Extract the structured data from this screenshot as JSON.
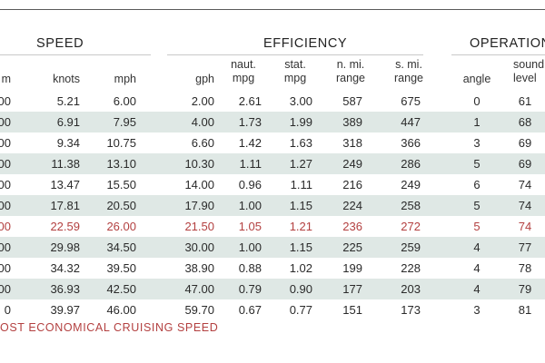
{
  "groups": {
    "speed": "SPEED",
    "efficiency": "EFFICIENCY",
    "operation": "OPERATION"
  },
  "headers": {
    "rpm": "m",
    "knots": "knots",
    "mph": "mph",
    "gph": "gph",
    "naut_mpg": "naut. mpg",
    "stat_mpg": "stat. mpg",
    "n_range": "n. mi. range",
    "s_range": "s. mi. range",
    "angle": "angle",
    "sound": "sound level"
  },
  "rows": [
    {
      "rpm": "00",
      "knots": "5.21",
      "mph": "6.00",
      "gph": "2.00",
      "naut": "2.61",
      "stat": "3.00",
      "nrange": "587",
      "srange": "675",
      "angle": "0",
      "sound": "61"
    },
    {
      "rpm": "00",
      "knots": "6.91",
      "mph": "7.95",
      "gph": "4.00",
      "naut": "1.73",
      "stat": "1.99",
      "nrange": "389",
      "srange": "447",
      "angle": "1",
      "sound": "68"
    },
    {
      "rpm": "00",
      "knots": "9.34",
      "mph": "10.75",
      "gph": "6.60",
      "naut": "1.42",
      "stat": "1.63",
      "nrange": "318",
      "srange": "366",
      "angle": "3",
      "sound": "69"
    },
    {
      "rpm": "00",
      "knots": "11.38",
      "mph": "13.10",
      "gph": "10.30",
      "naut": "1.11",
      "stat": "1.27",
      "nrange": "249",
      "srange": "286",
      "angle": "5",
      "sound": "69"
    },
    {
      "rpm": "00",
      "knots": "13.47",
      "mph": "15.50",
      "gph": "14.00",
      "naut": "0.96",
      "stat": "1.11",
      "nrange": "216",
      "srange": "249",
      "angle": "6",
      "sound": "74"
    },
    {
      "rpm": "00",
      "knots": "17.81",
      "mph": "20.50",
      "gph": "17.90",
      "naut": "1.00",
      "stat": "1.15",
      "nrange": "224",
      "srange": "258",
      "angle": "5",
      "sound": "74"
    },
    {
      "rpm": "00",
      "knots": "22.59",
      "mph": "26.00",
      "gph": "21.50",
      "naut": "1.05",
      "stat": "1.21",
      "nrange": "236",
      "srange": "272",
      "angle": "5",
      "sound": "74"
    },
    {
      "rpm": "00",
      "knots": "29.98",
      "mph": "34.50",
      "gph": "30.00",
      "naut": "1.00",
      "stat": "1.15",
      "nrange": "225",
      "srange": "259",
      "angle": "4",
      "sound": "77"
    },
    {
      "rpm": "00",
      "knots": "34.32",
      "mph": "39.50",
      "gph": "38.90",
      "naut": "0.88",
      "stat": "1.02",
      "nrange": "199",
      "srange": "228",
      "angle": "4",
      "sound": "78"
    },
    {
      "rpm": "00",
      "knots": "36.93",
      "mph": "42.50",
      "gph": "47.00",
      "naut": "0.79",
      "stat": "0.90",
      "nrange": "177",
      "srange": "203",
      "angle": "4",
      "sound": "79"
    },
    {
      "rpm": "0",
      "knots": "39.97",
      "mph": "46.00",
      "gph": "59.70",
      "naut": "0.67",
      "stat": "0.77",
      "nrange": "151",
      "srange": "173",
      "angle": "3",
      "sound": "81"
    }
  ],
  "highlight_row_index": 6,
  "shaded_row_indices": [
    1,
    3,
    5,
    7,
    9
  ],
  "footnote": "OST ECONOMICAL CRUISING SPEED",
  "colors": {
    "highlight": "#b34040",
    "row_shade": "#dfe8e5",
    "text": "#2a2a2a"
  }
}
